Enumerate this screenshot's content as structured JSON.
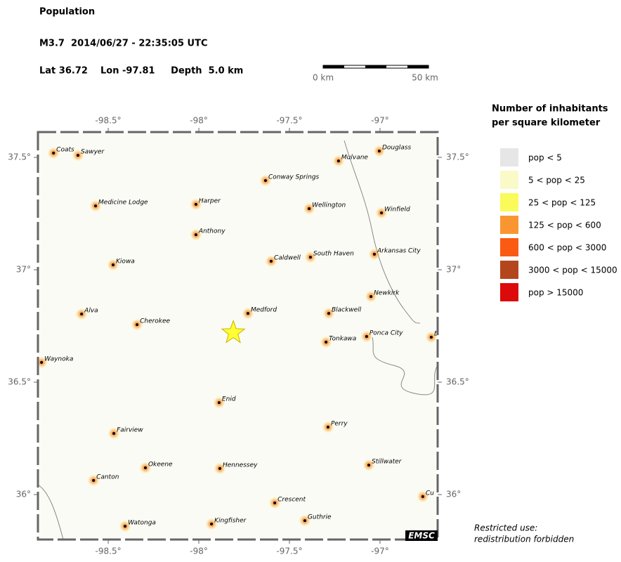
{
  "header": {
    "title": "Population",
    "event": "M3.7  2014/06/27 - 22:35:05 UTC",
    "location": "Lat 36.72    Lon -97.81     Depth  5.0 km"
  },
  "scale_bar": {
    "labels": [
      "0 km",
      "50 km"
    ]
  },
  "map": {
    "xlim": [
      -98.888,
      -96.682
    ],
    "ylim": [
      35.8,
      37.6125
    ],
    "xticks": [
      {
        "value": -98.5,
        "label": "-98.5°"
      },
      {
        "value": -98,
        "label": "-98°"
      },
      {
        "value": -97.5,
        "label": "-97.5°"
      },
      {
        "value": -97,
        "label": "-97°"
      }
    ],
    "yticks": [
      {
        "value": 37.5,
        "label": "37.5°"
      },
      {
        "value": 37,
        "label": "37°"
      },
      {
        "value": 36.5,
        "label": "36.5°"
      },
      {
        "value": 36,
        "label": "36°"
      }
    ],
    "epicenter": {
      "lon": -97.81,
      "lat": 36.72
    },
    "cities": [
      {
        "name": "Coats",
        "lon": -98.802,
        "lat": 37.519
      },
      {
        "name": "Sawyer",
        "lon": -98.667,
        "lat": 37.509
      },
      {
        "name": "Mulvane",
        "lon": -97.229,
        "lat": 37.484
      },
      {
        "name": "Douglass",
        "lon": -97.004,
        "lat": 37.528
      },
      {
        "name": "Conway Springs",
        "lon": -97.632,
        "lat": 37.397
      },
      {
        "name": "Medicine Lodge",
        "lon": -98.57,
        "lat": 37.284
      },
      {
        "name": "Harper",
        "lon": -98.016,
        "lat": 37.291
      },
      {
        "name": "Wellington",
        "lon": -97.391,
        "lat": 37.272
      },
      {
        "name": "Winfield",
        "lon": -96.992,
        "lat": 37.253
      },
      {
        "name": "Anthony",
        "lon": -98.016,
        "lat": 37.156
      },
      {
        "name": "Caldwell",
        "lon": -97.601,
        "lat": 37.038
      },
      {
        "name": "South Haven",
        "lon": -97.384,
        "lat": 37.056
      },
      {
        "name": "Arkansas City",
        "lon": -97.031,
        "lat": 37.069
      },
      {
        "name": "Kiowa",
        "lon": -98.473,
        "lat": 37.022
      },
      {
        "name": "Newkirk",
        "lon": -97.05,
        "lat": 36.881
      },
      {
        "name": "Medford",
        "lon": -97.729,
        "lat": 36.806
      },
      {
        "name": "Alva",
        "lon": -98.647,
        "lat": 36.803
      },
      {
        "name": "Blackwell",
        "lon": -97.283,
        "lat": 36.806
      },
      {
        "name": "Cherokee",
        "lon": -98.341,
        "lat": 36.756
      },
      {
        "name": "Ponca City",
        "lon": -97.074,
        "lat": 36.703
      },
      {
        "name": "Tonkawa",
        "lon": -97.298,
        "lat": 36.678
      },
      {
        "name": "B",
        "lon": -96.717,
        "lat": 36.7
      },
      {
        "name": "Waynoka",
        "lon": -98.868,
        "lat": 36.588
      },
      {
        "name": "Enid",
        "lon": -97.888,
        "lat": 36.409
      },
      {
        "name": "Fairview",
        "lon": -98.469,
        "lat": 36.272
      },
      {
        "name": "Perry",
        "lon": -97.287,
        "lat": 36.3
      },
      {
        "name": "Okeene",
        "lon": -98.295,
        "lat": 36.119
      },
      {
        "name": "Hennessey",
        "lon": -97.884,
        "lat": 36.116
      },
      {
        "name": "Stillwater",
        "lon": -97.062,
        "lat": 36.131
      },
      {
        "name": "Canton",
        "lon": -98.581,
        "lat": 36.063
      },
      {
        "name": "Cu",
        "lon": -96.764,
        "lat": 35.991
      },
      {
        "name": "Crescent",
        "lon": -97.581,
        "lat": 35.963
      },
      {
        "name": "Watonga",
        "lon": -98.407,
        "lat": 35.859
      },
      {
        "name": "Kingfisher",
        "lon": -97.93,
        "lat": 35.869
      },
      {
        "name": "Guthrie",
        "lon": -97.415,
        "lat": 35.884
      }
    ]
  },
  "legend": {
    "title": [
      "Number of inhabitants",
      "per square kilometer"
    ],
    "items": [
      {
        "label": "pop < 5",
        "color": "#e6e6e6"
      },
      {
        "label": "5 < pop < 25",
        "color": "#fafac8"
      },
      {
        "label": "25 < pop < 125",
        "color": "#fafa5a"
      },
      {
        "label": "125 < pop < 600",
        "color": "#fa9632"
      },
      {
        "label": "600 < pop < 3000",
        "color": "#fa5a14"
      },
      {
        "label": "3000 < pop < 15000",
        "color": "#b4461e"
      },
      {
        "label": "pop > 15000",
        "color": "#dc0a0a"
      }
    ]
  },
  "footer": [
    "Restricted use:",
    "redistribution forbidden"
  ],
  "badge": "EMSC"
}
